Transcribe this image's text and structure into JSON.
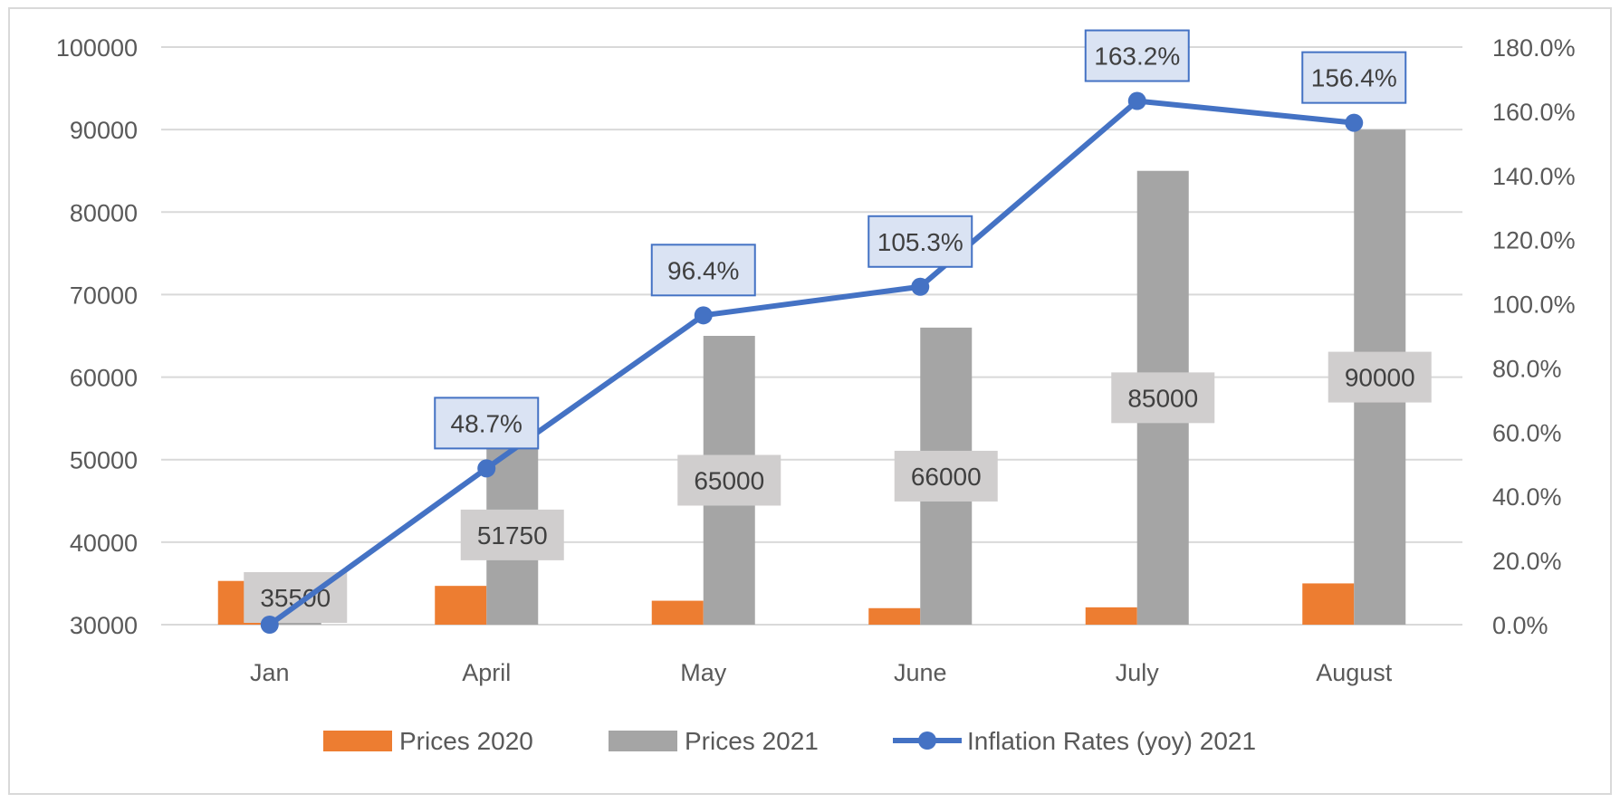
{
  "chart_data": {
    "type": "bar",
    "categories": [
      "Jan",
      "April",
      "May",
      "June",
      "July",
      "August"
    ],
    "series": [
      {
        "name": "Prices 2020",
        "kind": "bar",
        "axis": "left",
        "color": "#ed7d31",
        "values": [
          35300,
          34700,
          32900,
          32000,
          32100,
          35000
        ],
        "data_labels": null
      },
      {
        "name": "Prices 2021",
        "kind": "bar",
        "axis": "left",
        "color": "#a5a5a5",
        "values": [
          35500,
          51750,
          65000,
          66000,
          85000,
          90000
        ],
        "data_labels": [
          "35500",
          "51750",
          "65000",
          "66000",
          "85000",
          "90000"
        ]
      },
      {
        "name": "Inflation Rates (yoy) 2021",
        "kind": "line",
        "axis": "right",
        "color": "#4472c4",
        "values": [
          0.0,
          48.7,
          96.4,
          105.3,
          163.2,
          156.4
        ],
        "data_labels": [
          "",
          "48.7%",
          "96.4%",
          "105.3%",
          "163.2%",
          "156.4%"
        ]
      }
    ],
    "y_left": {
      "min": 30000,
      "max": 100000,
      "step": 10000,
      "ticks": [
        "30000",
        "40000",
        "50000",
        "60000",
        "70000",
        "80000",
        "90000",
        "100000"
      ]
    },
    "y_right": {
      "min": 0,
      "max": 180,
      "step": 20,
      "ticks": [
        "0.0%",
        "20.0%",
        "40.0%",
        "60.0%",
        "80.0%",
        "100.0%",
        "120.0%",
        "140.0%",
        "160.0%",
        "180.0%"
      ]
    },
    "title": "",
    "xlabel": "",
    "ylabel": "",
    "grid": true,
    "legend": "bottom"
  }
}
